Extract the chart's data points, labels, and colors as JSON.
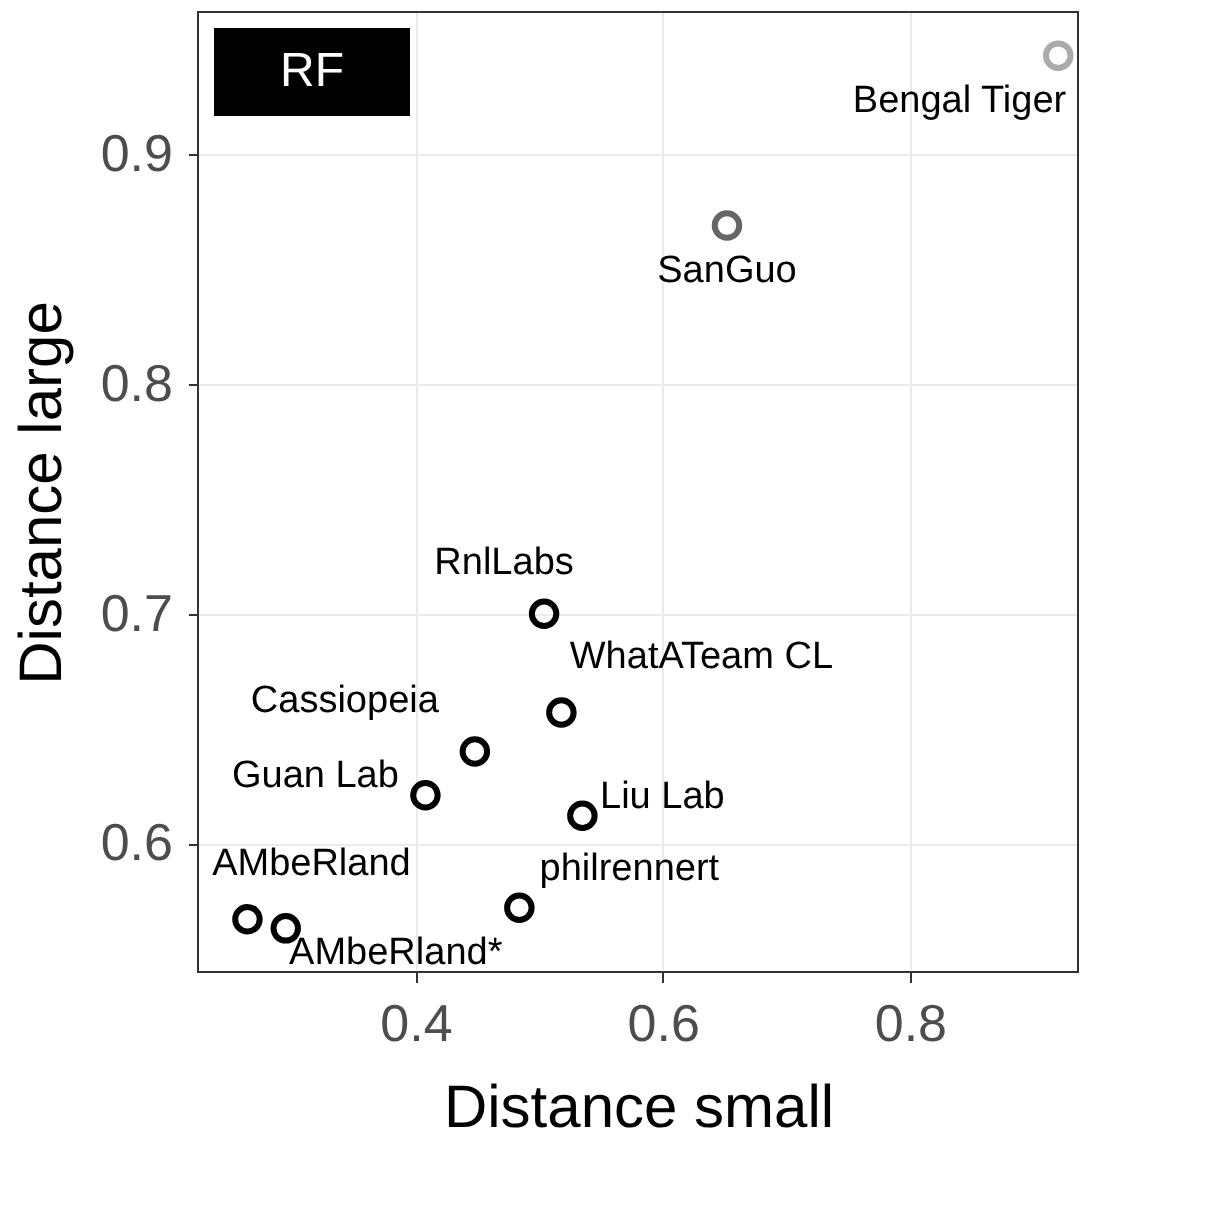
{
  "chart_data": {
    "type": "scatter",
    "xlabel": "Distance small",
    "ylabel": "Distance large",
    "annotations": [
      "RF"
    ],
    "xlim": [
      0.224,
      0.936
    ],
    "ylim": [
      0.544,
      0.962
    ],
    "xticks": [
      0.4,
      0.6,
      0.8
    ],
    "yticks": [
      0.6,
      0.7,
      0.8,
      0.9
    ],
    "grid": true,
    "marker": "circle",
    "legend": false,
    "series": [
      {
        "name": "Bengal Tiger",
        "color": "#aaaaaa",
        "x": [
          0.92
        ],
        "values": [
          0.943
        ]
      },
      {
        "name": "SanGuo",
        "color": "#666666",
        "x": [
          0.652
        ],
        "values": [
          0.869
        ]
      },
      {
        "name": "RnlLabs",
        "color": "#000000",
        "x": [
          0.504
        ],
        "values": [
          0.7
        ]
      },
      {
        "name": "WhatATeam CL",
        "color": "#000000",
        "x": [
          0.518
        ],
        "values": [
          0.657
        ]
      },
      {
        "name": "Cassiopeia",
        "color": "#000000",
        "x": [
          0.448
        ],
        "values": [
          0.64
        ]
      },
      {
        "name": "Guan Lab",
        "color": "#000000",
        "x": [
          0.408
        ],
        "values": [
          0.621
        ]
      },
      {
        "name": "Liu Lab",
        "color": "#000000",
        "x": [
          0.535
        ],
        "values": [
          0.612
        ]
      },
      {
        "name": "AMbeRland",
        "color": "#000000",
        "x": [
          0.264
        ],
        "values": [
          0.567
        ]
      },
      {
        "name": "AMbeRland*",
        "color": "#000000",
        "x": [
          0.295
        ],
        "values": [
          0.563
        ]
      },
      {
        "name": "philrennert",
        "color": "#000000",
        "x": [
          0.484
        ],
        "values": [
          0.572
        ]
      }
    ]
  }
}
